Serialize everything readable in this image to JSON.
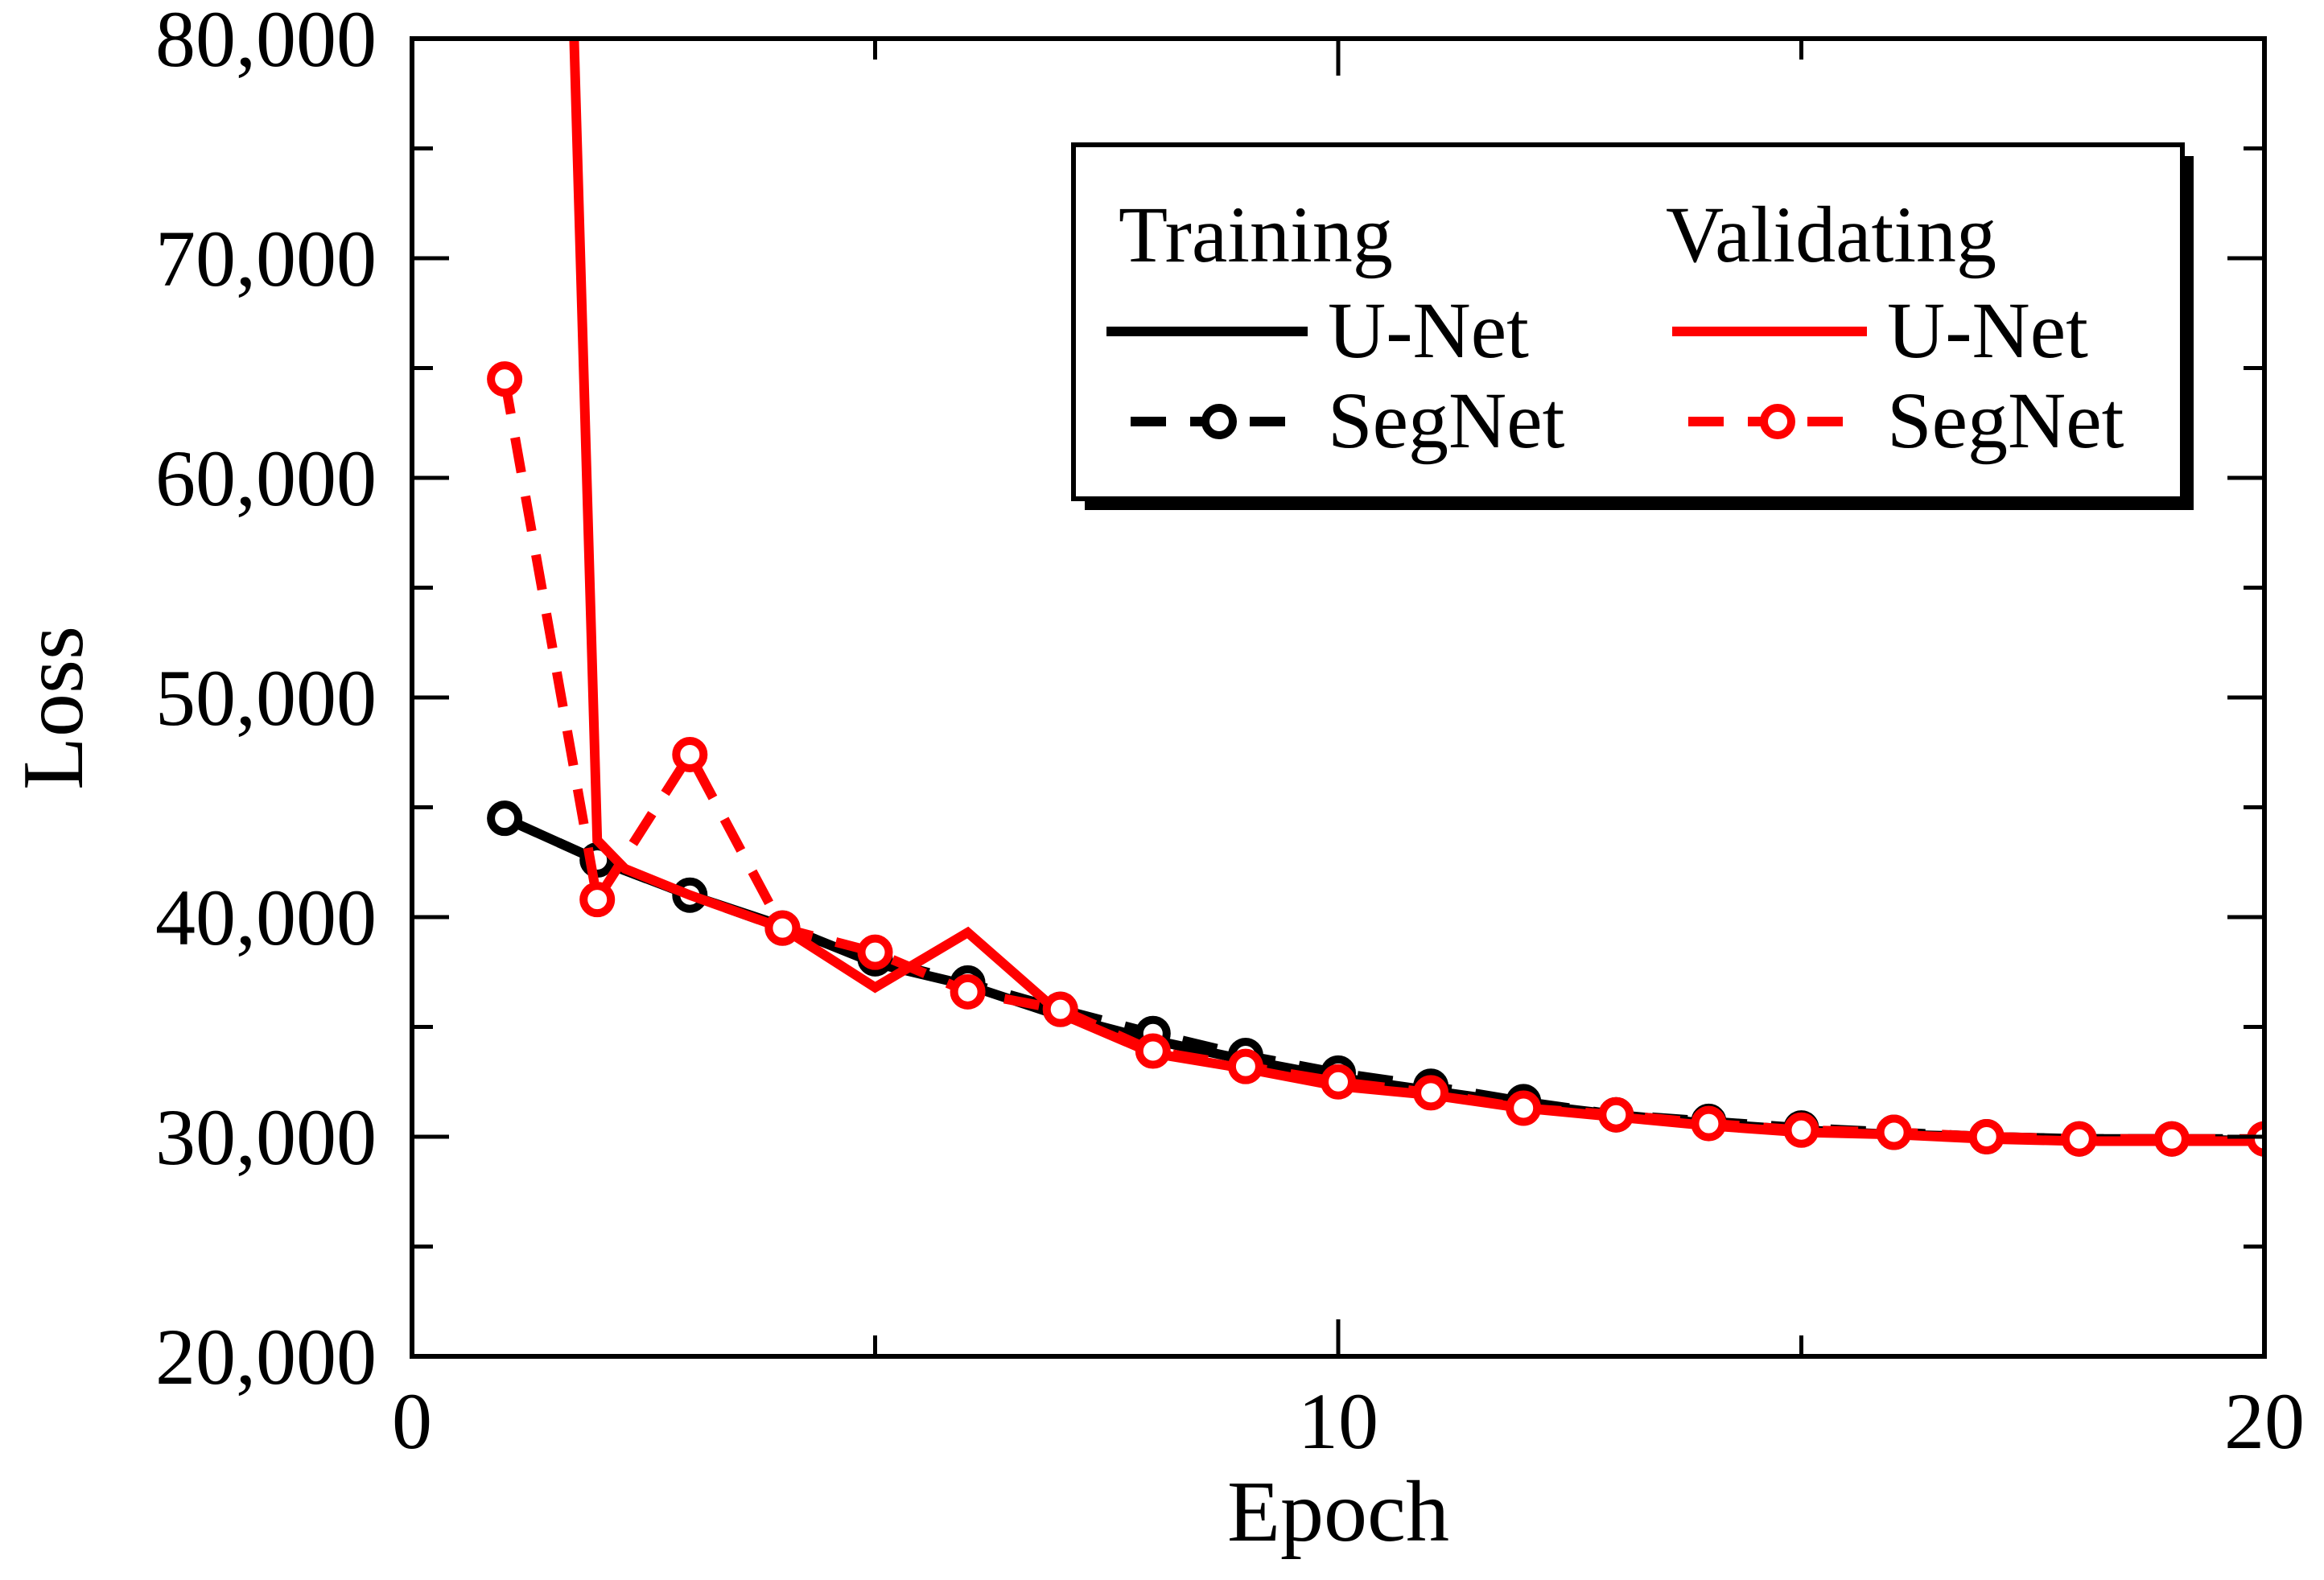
{
  "chart_data": {
    "type": "line",
    "title": "",
    "xlabel": "Epoch",
    "ylabel": "Loss",
    "xlim": [
      0,
      20
    ],
    "ylim": [
      20000,
      80000
    ],
    "x_ticks": [
      0,
      10,
      20
    ],
    "x_tick_labels": [
      "0",
      "10",
      "20"
    ],
    "y_ticks": [
      20000,
      30000,
      40000,
      50000,
      60000,
      70000,
      80000
    ],
    "y_tick_labels": [
      "20,000",
      "30,000",
      "40,000",
      "50,000",
      "60,000",
      "70,000",
      "80,000"
    ],
    "grid": false,
    "legend": {
      "position": "top-right",
      "headers": [
        "Training",
        "Validating"
      ]
    },
    "series": [
      {
        "name": "U-Net",
        "group": "Training",
        "color": "#000000",
        "style": "solid",
        "marker": "none",
        "x": [
          1,
          2,
          3,
          4,
          5,
          6,
          7,
          8,
          9,
          10,
          11,
          12,
          13,
          14,
          15,
          16,
          17,
          18,
          19,
          20
        ],
        "y": [
          44500,
          42600,
          41000,
          39600,
          37900,
          36900,
          35500,
          34400,
          33500,
          32700,
          32100,
          31500,
          31000,
          30600,
          30300,
          30100,
          30000,
          29900,
          29900,
          29800
        ]
      },
      {
        "name": "SegNet",
        "group": "Training",
        "color": "#000000",
        "style": "dashed",
        "marker": "circle",
        "x": [
          1,
          2,
          3,
          4,
          5,
          6,
          7,
          8,
          9,
          10,
          11,
          12,
          13,
          14,
          15,
          16,
          17,
          18,
          19,
          20
        ],
        "y": [
          44500,
          42600,
          41000,
          39500,
          38100,
          37000,
          35800,
          34700,
          33700,
          32900,
          32300,
          31600,
          31000,
          30700,
          30400,
          30200,
          30000,
          29900,
          29900,
          29900
        ]
      },
      {
        "name": "U-Net",
        "group": "Validating",
        "color": "#ff0000",
        "style": "solid",
        "marker": "none",
        "x": [
          1.75,
          2,
          2.3,
          3,
          4,
          5,
          6,
          7,
          8,
          9,
          10,
          11,
          12,
          13,
          14,
          15,
          16,
          17,
          18,
          19,
          20
        ],
        "y": [
          80000,
          43500,
          42200,
          41000,
          39500,
          36800,
          39300,
          35600,
          33800,
          33100,
          32300,
          31900,
          31300,
          30900,
          30500,
          30200,
          30100,
          29900,
          29800,
          29800,
          29800
        ]
      },
      {
        "name": "SegNet",
        "group": "Validating",
        "color": "#ff0000",
        "style": "dashed",
        "marker": "circle",
        "x": [
          1,
          2,
          3,
          4,
          5,
          6,
          7,
          8,
          9,
          10,
          11,
          12,
          13,
          14,
          15,
          16,
          17,
          18,
          19,
          20
        ],
        "y": [
          64500,
          40800,
          47400,
          39500,
          38400,
          36600,
          35800,
          33900,
          33200,
          32500,
          32000,
          31300,
          31000,
          30600,
          30300,
          30200,
          30000,
          29900,
          29900,
          29900
        ]
      }
    ]
  }
}
